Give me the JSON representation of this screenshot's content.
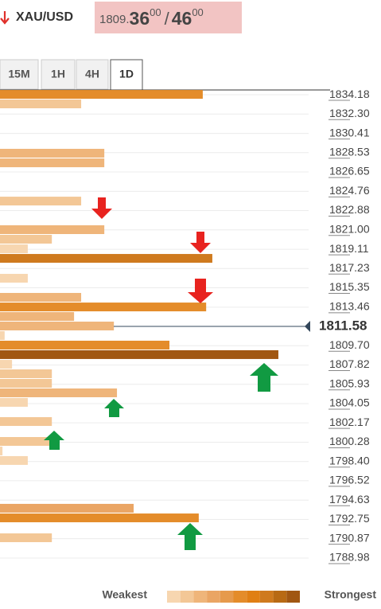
{
  "header": {
    "symbol": "XAU/USD",
    "bid_main": "1809.",
    "bid_big": "36",
    "bid_small": "00",
    "separator": "/",
    "ask_big": "46",
    "ask_small": "00"
  },
  "tabs": [
    "15M",
    "1H",
    "4H",
    "1D"
  ],
  "legend": {
    "weakest": "Weakest",
    "strongest": "Strongest",
    "colors": [
      "#f7d6b0",
      "#f3c796",
      "#efb57a",
      "#eaa564",
      "#e69a4c",
      "#e48c2a",
      "#e07f14",
      "#cf7a1e",
      "#b86a14",
      "#a15712"
    ]
  },
  "chart_data": {
    "type": "confluence",
    "levels": [
      1834.18,
      1833.25,
      1828.44,
      1827.5,
      1823.77,
      1820.98,
      1820.05,
      1819.11,
      1818.18,
      1816.24,
      1814.38,
      1813.44,
      1812.51,
      1811.58,
      1810.65,
      1809.72,
      1808.79,
      1807.85,
      1806.92,
      1805.99,
      1805.06,
      1804.13,
      1802.26,
      1800.32,
      1799.39,
      1798.46,
      1793.8,
      1792.86,
      1790.92
    ],
    "values": [
      65.7,
      26.3,
      33.8,
      33.8,
      26.3,
      33.8,
      16.8,
      9.0,
      68.8,
      9.0,
      26.3,
      66.8,
      24.0,
      36.9,
      1.5,
      54.9,
      90.2,
      3.9,
      16.8,
      16.8,
      37.9,
      9.0,
      16.8,
      16.8,
      0.8,
      9.0,
      43.3,
      64.4,
      16.8
    ],
    "colors": [
      "#e48c2a",
      "#f3c796",
      "#efb57a",
      "#efb57a",
      "#f3c796",
      "#efb57a",
      "#f3c796",
      "#f7d6b0",
      "#cf7a1e",
      "#f7d6b0",
      "#efb57a",
      "#e48c2a",
      "#efb57a",
      "#efb57a",
      "#f7d6b0",
      "#e48c2a",
      "#a15712",
      "#f7d6b0",
      "#f3c796",
      "#f3c796",
      "#efb57a",
      "#f7d6b0",
      "#f3c796",
      "#f3c796",
      "#f7d6b0",
      "#f7d6b0",
      "#eaa564",
      "#e48c2a",
      "#f3c796"
    ],
    "xlim": [
      0,
      100
    ],
    "ylim": [
      1787.66,
      1834.65
    ],
    "yticks": [
      1834.18,
      {
        "value": 1832.3,
        "label": "1832.30"
      },
      1830.41,
      1828.53,
      1826.65,
      1824.76,
      1822.88,
      {
        "value": 1821,
        "label": "1821.00"
      },
      1819.11,
      1817.23,
      1815.35,
      1813.46,
      {
        "value": 1809.7,
        "label": "1809.70"
      },
      1807.82,
      1805.93,
      1804.05,
      1802.17,
      1800.28,
      {
        "value": 1798.4,
        "label": "1798.40"
      },
      1796.52,
      1794.63,
      1792.75,
      1790.87,
      1788.98
    ],
    "current_price": 1811.58,
    "grid": true
  }
}
